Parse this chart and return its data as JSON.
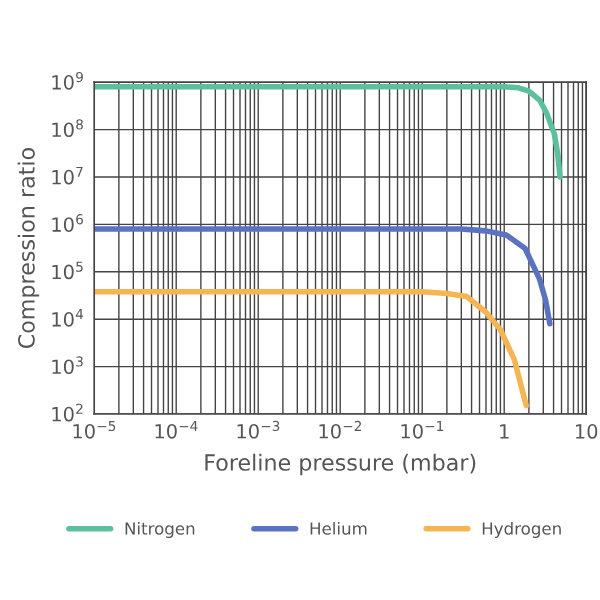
{
  "chart_data": {
    "type": "line",
    "xlabel": "Foreline pressure (mbar)",
    "ylabel": "Compression ratio",
    "log": "xy",
    "grid": true,
    "legend": "bottom",
    "marker": "none",
    "line_style": "solid",
    "xlim": [
      1e-05,
      10
    ],
    "ylim": [
      100,
      1000000000.0
    ],
    "xticks": [
      {
        "value": 1e-05,
        "label": "10$^{−5}$"
      },
      {
        "value": 0.0001,
        "label": "10$^{−4}$"
      },
      {
        "value": 0.001,
        "label": "10$^{−3}$"
      },
      {
        "value": 0.01,
        "label": "10$^{−2}$"
      },
      {
        "value": 0.1,
        "label": "10$^{−1}$"
      },
      1,
      10
    ],
    "yticks": [
      {
        "value": 100.0,
        "label": "10$^{2}$"
      },
      {
        "value": 1000.0,
        "label": "10$^{3}$"
      },
      {
        "value": 10000.0,
        "label": "10$^{4}$"
      },
      {
        "value": 100000.0,
        "label": "10$^{5}$"
      },
      {
        "value": 1000000.0,
        "label": "10$^{6}$"
      },
      {
        "value": 10000000.0,
        "label": "10$^{7}$"
      },
      {
        "value": 100000000.0,
        "label": "10$^{8}$"
      },
      {
        "value": 1000000000.0,
        "label": "10$^{9}$"
      }
    ],
    "series": [
      {
        "name": "Nitrogen",
        "color": "#5dbf9c",
        "x": [
          1e-05,
          1,
          1.5,
          2,
          2.7,
          3.3,
          4.1,
          4.5,
          4.8
        ],
        "values": [
          800000000.0,
          800000000.0,
          760000000.0,
          650000000.0,
          420000000.0,
          220000000.0,
          80000000.0,
          30000000.0,
          10000000.0
        ]
      },
      {
        "name": "Helium",
        "color": "#5b72c0",
        "x": [
          1e-05,
          0.3,
          0.6,
          1.06,
          1.8,
          2.7,
          3.2,
          3.6
        ],
        "values": [
          800000.0,
          800000.0,
          730000.0,
          600000.0,
          310000.0,
          70000.0,
          25000.0,
          8000.0
        ]
      },
      {
        "name": "Hydrogen",
        "color": "#f5b553",
        "x": [
          1e-05,
          0.1,
          0.2,
          0.35,
          0.6,
          0.9,
          1.33,
          1.7,
          1.86
        ],
        "values": [
          38000.0,
          38000.0,
          35000.0,
          30000.0,
          14000.0,
          6000.0,
          1400.0,
          270.0,
          150.0
        ]
      }
    ]
  }
}
